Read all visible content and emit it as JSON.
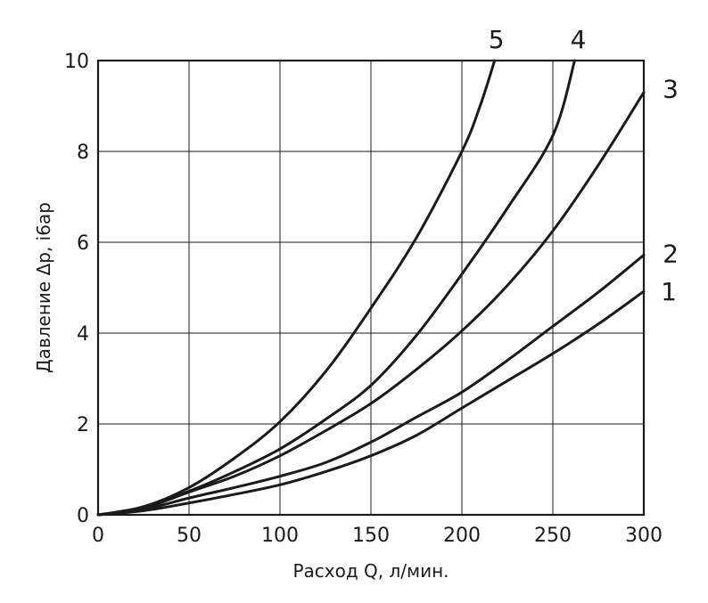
{
  "chart_data": {
    "type": "line",
    "title": "",
    "xlabel": "Расход Q, л/мин.",
    "ylabel": "Давление Δp, і6ар",
    "xlim": [
      0,
      300
    ],
    "ylim": [
      0,
      10
    ],
    "xticks": [
      0,
      50,
      100,
      150,
      200,
      250,
      300
    ],
    "yticks": [
      0,
      2,
      4,
      6,
      8,
      10
    ],
    "grid": true,
    "legend": "none",
    "series": [
      {
        "name": "1",
        "x": [
          0,
          25,
          50,
          75,
          100,
          125,
          150,
          175,
          200,
          225,
          250,
          275,
          300
        ],
        "y": [
          0,
          0.09,
          0.26,
          0.45,
          0.66,
          0.95,
          1.3,
          1.75,
          2.35,
          2.95,
          3.55,
          4.2,
          4.92
        ]
      },
      {
        "name": "2",
        "x": [
          0,
          25,
          50,
          75,
          100,
          125,
          150,
          175,
          200,
          225,
          250,
          275,
          300
        ],
        "y": [
          0,
          0.12,
          0.37,
          0.6,
          0.85,
          1.15,
          1.6,
          2.15,
          2.7,
          3.4,
          4.15,
          4.9,
          5.72
        ]
      },
      {
        "name": "3",
        "x": [
          0,
          25,
          50,
          75,
          100,
          125,
          150,
          175,
          200,
          225,
          250,
          275,
          300
        ],
        "y": [
          0,
          0.15,
          0.5,
          0.85,
          1.3,
          1.85,
          2.45,
          3.2,
          4.05,
          5.05,
          6.25,
          7.7,
          9.3
        ]
      },
      {
        "name": "4",
        "x": [
          0,
          25,
          50,
          75,
          100,
          125,
          150,
          175,
          200,
          225,
          250,
          262
        ],
        "y": [
          0,
          0.15,
          0.52,
          0.95,
          1.45,
          2.1,
          2.85,
          3.95,
          5.3,
          6.75,
          8.35,
          10
        ]
      },
      {
        "name": "5",
        "x": [
          0,
          25,
          50,
          75,
          100,
          125,
          150,
          175,
          200,
          210,
          218
        ],
        "y": [
          0,
          0.18,
          0.6,
          1.25,
          2.05,
          3.15,
          4.55,
          6.1,
          8.0,
          9.0,
          10
        ]
      }
    ],
    "series_label_anchor": [
      {
        "name": "1",
        "x": 300,
        "y": 4.92
      },
      {
        "name": "2",
        "x": 300,
        "y": 5.72
      },
      {
        "name": "3",
        "x": 300,
        "y": 9.3
      },
      {
        "name": "4",
        "x": 262,
        "y": 10
      },
      {
        "name": "5",
        "x": 218,
        "y": 10
      }
    ]
  }
}
